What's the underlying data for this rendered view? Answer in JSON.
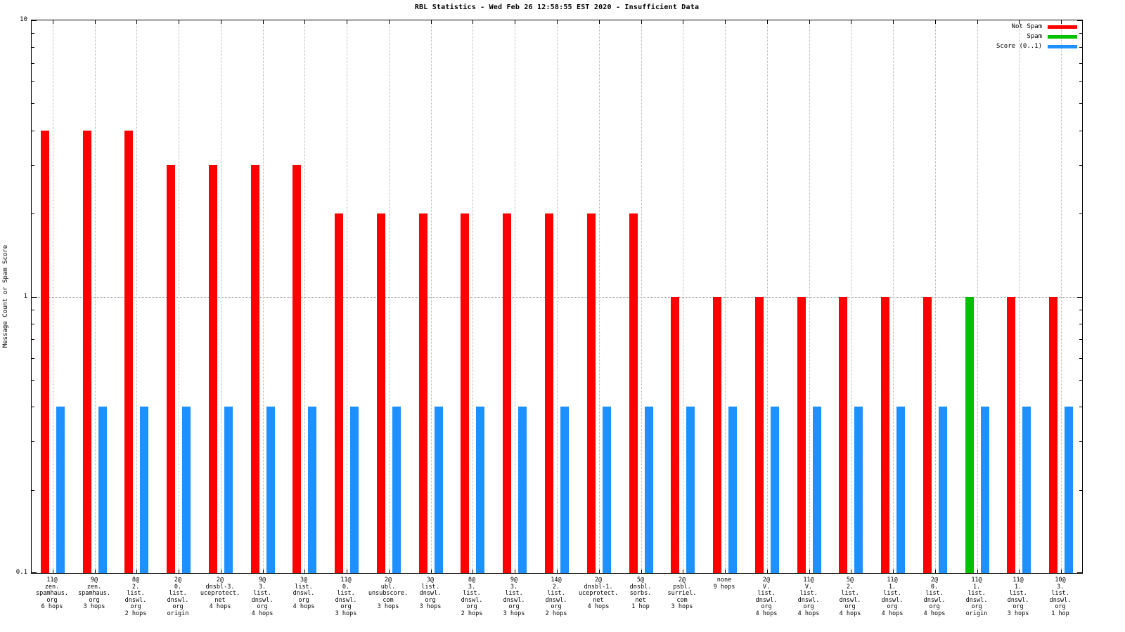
{
  "chart_data": {
    "type": "bar",
    "title": "RBL Statistics - Wed Feb 26 12:58:55 EST 2020 - Insufficient Data",
    "ylabel": "Message Count or Spam Score",
    "xlabel": "",
    "yscale": "log",
    "ylim": [
      0.1,
      10
    ],
    "yticks": [
      "0.1",
      "1",
      "10"
    ],
    "grid": true,
    "legend_position": "top-right-inside",
    "colors": {
      "not_spam": "#ff0000",
      "spam": "#00c000",
      "score": "#1e90ff",
      "grid": "#b5b5b5",
      "border": "#000000",
      "background": "#ffffff"
    },
    "legend": [
      {
        "label": "Not Spam",
        "series": "not_spam"
      },
      {
        "label": "Spam",
        "series": "spam"
      },
      {
        "label": "Score (0..1)",
        "series": "score"
      }
    ],
    "series_meaning": {
      "count": "Message Count (red = Not Spam, green = Spam)",
      "score": "Spam Score (0..1)"
    },
    "categories": [
      {
        "label_lines": [
          "11@",
          "zen.",
          "spamhaus.",
          "org",
          "6 hops"
        ],
        "count": 4,
        "series": "not_spam",
        "score": 0.4
      },
      {
        "label_lines": [
          "9@",
          "zen.",
          "spamhaus.",
          "org",
          "3 hops"
        ],
        "count": 4,
        "series": "not_spam",
        "score": 0.4
      },
      {
        "label_lines": [
          "8@",
          "2.",
          "list.",
          "dnswl.",
          "org",
          "2 hops"
        ],
        "count": 4,
        "series": "not_spam",
        "score": 0.4
      },
      {
        "label_lines": [
          "2@",
          "0.",
          "list.",
          "dnswl.",
          "org",
          "origin"
        ],
        "count": 3,
        "series": "not_spam",
        "score": 0.4
      },
      {
        "label_lines": [
          "2@",
          "dnsbl-3.",
          "uceprotect.",
          "net",
          "4 hops"
        ],
        "count": 3,
        "series": "not_spam",
        "score": 0.4
      },
      {
        "label_lines": [
          "9@",
          "3.",
          "list.",
          "dnswl.",
          "org",
          "4 hops"
        ],
        "count": 3,
        "series": "not_spam",
        "score": 0.4
      },
      {
        "label_lines": [
          "3@",
          "list.",
          "dnswl.",
          "org",
          "4 hops"
        ],
        "count": 3,
        "series": "not_spam",
        "score": 0.4
      },
      {
        "label_lines": [
          "11@",
          "0.",
          "list.",
          "dnswl.",
          "org",
          "3 hops"
        ],
        "count": 2,
        "series": "not_spam",
        "score": 0.4
      },
      {
        "label_lines": [
          "2@",
          "ubl.",
          "unsubscore.",
          "com",
          "3 hops"
        ],
        "count": 2,
        "series": "not_spam",
        "score": 0.4
      },
      {
        "label_lines": [
          "3@",
          "list.",
          "dnswl.",
          "org",
          "3 hops"
        ],
        "count": 2,
        "series": "not_spam",
        "score": 0.4
      },
      {
        "label_lines": [
          "8@",
          "3.",
          "list.",
          "dnswl.",
          "org",
          "2 hops"
        ],
        "count": 2,
        "series": "not_spam",
        "score": 0.4
      },
      {
        "label_lines": [
          "9@",
          "3.",
          "list.",
          "dnswl.",
          "org",
          "3 hops"
        ],
        "count": 2,
        "series": "not_spam",
        "score": 0.4
      },
      {
        "label_lines": [
          "14@",
          "2.",
          "list.",
          "dnswl.",
          "org",
          "2 hops"
        ],
        "count": 2,
        "series": "not_spam",
        "score": 0.4
      },
      {
        "label_lines": [
          "2@",
          "dnsbl-1.",
          "uceprotect.",
          "net",
          "4 hops"
        ],
        "count": 2,
        "series": "not_spam",
        "score": 0.4
      },
      {
        "label_lines": [
          "5@",
          "dnsbl.",
          "sorbs.",
          "net",
          "1 hop"
        ],
        "count": 2,
        "series": "not_spam",
        "score": 0.4
      },
      {
        "label_lines": [
          "2@",
          "psbl.",
          "surriel.",
          "com",
          "3 hops"
        ],
        "count": 1,
        "series": "not_spam",
        "score": 0.4
      },
      {
        "label_lines": [
          "none",
          "9 hops"
        ],
        "count": 1,
        "series": "not_spam",
        "score": 0.4
      },
      {
        "label_lines": [
          "2@",
          "V.",
          "list.",
          "dnswl.",
          "org",
          "4 hops"
        ],
        "count": 1,
        "series": "not_spam",
        "score": 0.4
      },
      {
        "label_lines": [
          "11@",
          "V.",
          "list.",
          "dnswl.",
          "org",
          "4 hops"
        ],
        "count": 1,
        "series": "not_spam",
        "score": 0.4
      },
      {
        "label_lines": [
          "5@",
          "2.",
          "list.",
          "dnswl.",
          "org",
          "4 hops"
        ],
        "count": 1,
        "series": "not_spam",
        "score": 0.4
      },
      {
        "label_lines": [
          "11@",
          "1.",
          "list.",
          "dnswl.",
          "org",
          "4 hops"
        ],
        "count": 1,
        "series": "not_spam",
        "score": 0.4
      },
      {
        "label_lines": [
          "2@",
          "0.",
          "list.",
          "dnswl.",
          "org",
          "4 hops"
        ],
        "count": 1,
        "series": "not_spam",
        "score": 0.4
      },
      {
        "label_lines": [
          "11@",
          "1.",
          "list.",
          "dnswl.",
          "org",
          "origin"
        ],
        "count": 1,
        "series": "spam",
        "score": 0.4
      },
      {
        "label_lines": [
          "11@",
          "1.",
          "list.",
          "dnswl.",
          "org",
          "3 hops"
        ],
        "count": 1,
        "series": "not_spam",
        "score": 0.4
      },
      {
        "label_lines": [
          "10@",
          "3.",
          "list.",
          "dnswl.",
          "org",
          "1 hop"
        ],
        "count": 1,
        "series": "not_spam",
        "score": 0.4
      }
    ]
  }
}
